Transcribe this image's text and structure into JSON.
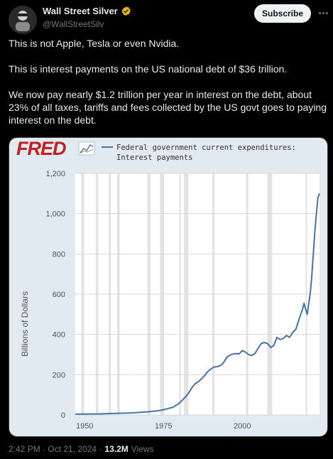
{
  "post": {
    "display_name": "Wall Street Silver",
    "handle": "@WallStreetSilv",
    "subscribe_label": "Subscribe",
    "paragraphs": [
      "This is not Apple, Tesla or even Nvidia.",
      "This is interest payments on the US national debt of $36 trillion.",
      "We now pay nearly $1.2 trillion per year in interest on the debt, about 23% of all taxes, tariffs and fees collected by the US govt goes to paying interest on the debt."
    ],
    "timestamp": "2:42 PM · Oct 21, 2024 ·",
    "views_count": "13.2M",
    "views_label": "Views"
  },
  "chart": {
    "brand": "FRED",
    "legend_line1": "Federal government current expenditures:",
    "legend_line2": "Interest payments",
    "ylabel": "Billions of Dollars",
    "colors": {
      "line": "#4572a7",
      "background": "#e1e9f1",
      "plot_bg": "#ffffff",
      "recession": "#e3e3e3",
      "brand": "#c21f1f"
    }
  },
  "chart_data": {
    "type": "line",
    "title": "Federal government current expenditures: Interest payments",
    "ylabel": "Billions of Dollars",
    "xlabel": "",
    "xlim": [
      1947,
      2024.5
    ],
    "ylim": [
      0,
      1200
    ],
    "yticks": [
      0,
      200,
      400,
      600,
      800,
      1000,
      1200
    ],
    "ytick_labels": [
      "0",
      "200",
      "400",
      "600",
      "800",
      "1,000",
      "1,200"
    ],
    "xticks": [
      1950,
      1975,
      2000
    ],
    "grid": true,
    "legend": "top",
    "recessions": [
      [
        1948.9,
        1949.8
      ],
      [
        1953.5,
        1954.3
      ],
      [
        1957.6,
        1958.3
      ],
      [
        1960.3,
        1961.1
      ],
      [
        1969.9,
        1970.9
      ],
      [
        1973.9,
        1975.2
      ],
      [
        1980.0,
        1980.5
      ],
      [
        1981.5,
        1982.9
      ],
      [
        1990.5,
        1991.2
      ],
      [
        2001.2,
        2001.9
      ],
      [
        2007.9,
        2009.5
      ],
      [
        2020.1,
        2020.4
      ]
    ],
    "series": [
      {
        "values": [
          [
            1947,
            4.3
          ],
          [
            1950,
            4.6
          ],
          [
            1955,
            5.2
          ],
          [
            1960,
            7.9
          ],
          [
            1965,
            10.1
          ],
          [
            1970,
            15.5
          ],
          [
            1973,
            20
          ],
          [
            1975,
            26
          ],
          [
            1978,
            38
          ],
          [
            1980,
            58
          ],
          [
            1982,
            90
          ],
          [
            1983,
            110
          ],
          [
            1984,
            135
          ],
          [
            1985,
            155
          ],
          [
            1986,
            165
          ],
          [
            1987,
            178
          ],
          [
            1988,
            195
          ],
          [
            1989,
            215
          ],
          [
            1990,
            228
          ],
          [
            1991,
            238
          ],
          [
            1992,
            240
          ],
          [
            1993,
            245
          ],
          [
            1994,
            258
          ],
          [
            1995,
            285
          ],
          [
            1996,
            297
          ],
          [
            1997,
            302
          ],
          [
            1998,
            305
          ],
          [
            1999,
            303
          ],
          [
            2000,
            320
          ],
          [
            2001,
            312
          ],
          [
            2002,
            300
          ],
          [
            2003,
            295
          ],
          [
            2004,
            305
          ],
          [
            2005,
            330
          ],
          [
            2006,
            355
          ],
          [
            2007,
            360
          ],
          [
            2008,
            355
          ],
          [
            2009,
            335
          ],
          [
            2010,
            345
          ],
          [
            2011,
            385
          ],
          [
            2012,
            375
          ],
          [
            2013,
            380
          ],
          [
            2014,
            395
          ],
          [
            2015,
            385
          ],
          [
            2016,
            410
          ],
          [
            2017,
            425
          ],
          [
            2018,
            475
          ],
          [
            2019,
            520
          ],
          [
            2019.6,
            555
          ],
          [
            2020,
            530
          ],
          [
            2020.6,
            500
          ],
          [
            2021,
            545
          ],
          [
            2021.6,
            610
          ],
          [
            2022,
            680
          ],
          [
            2022.5,
            790
          ],
          [
            2023,
            905
          ],
          [
            2023.5,
            1000
          ],
          [
            2024,
            1080
          ],
          [
            2024.5,
            1100
          ]
        ]
      }
    ]
  }
}
